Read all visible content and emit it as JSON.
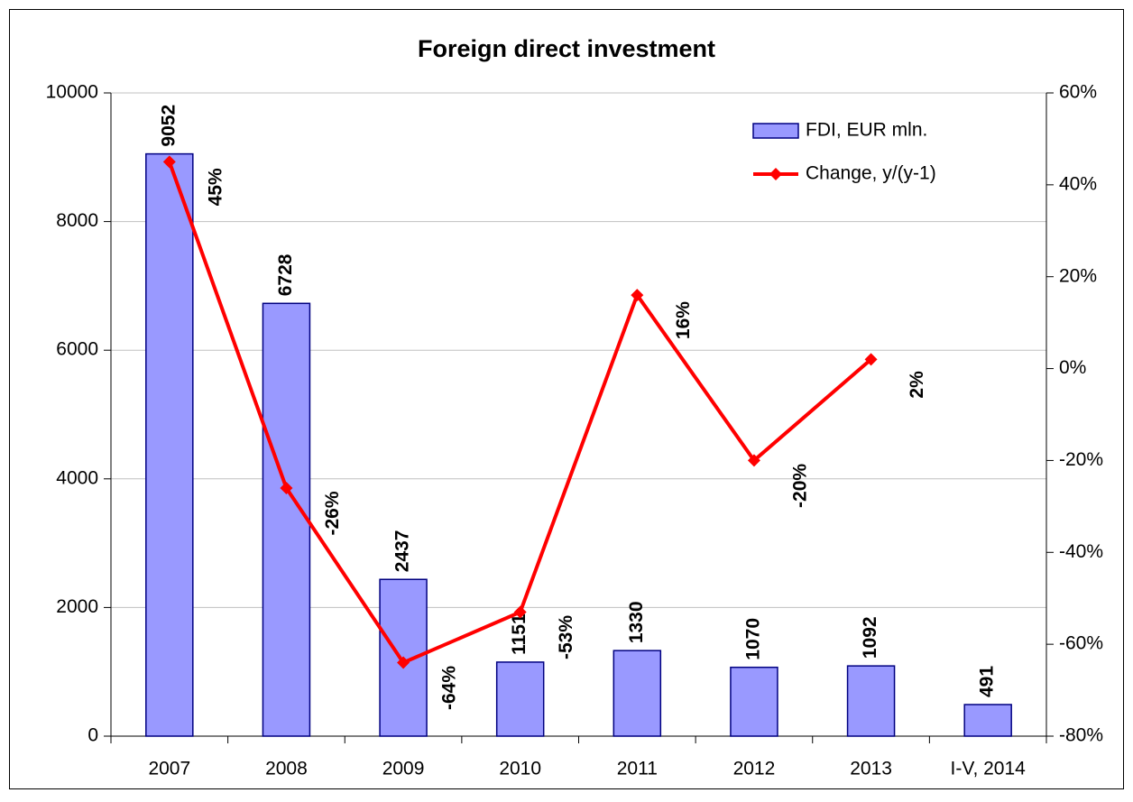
{
  "chart_data": {
    "type": "bar_line",
    "title": "Foreign direct investment",
    "categories": [
      "2007",
      "2008",
      "2009",
      "2010",
      "2011",
      "2012",
      "2013",
      "I-V, 2014"
    ],
    "series": [
      {
        "name": "FDI, EUR mln.",
        "type": "bar",
        "color": "#9999ff",
        "edge_color": "#000080",
        "values": [
          9052,
          6728,
          2437,
          1151,
          1330,
          1070,
          1092,
          491
        ]
      },
      {
        "name": "Change, y/(y-1)",
        "type": "line",
        "axis": "y2",
        "color": "#ff0000",
        "values": [
          45,
          -26,
          -64,
          -53,
          16,
          -20,
          2,
          null
        ],
        "value_labels": [
          "45%",
          "-26%",
          "-64%",
          "-53%",
          "16%",
          "-20%",
          "2%",
          null
        ]
      }
    ],
    "ylim": [
      0,
      10000
    ],
    "yticks": [
      0,
      2000,
      4000,
      6000,
      8000,
      10000
    ],
    "y2lim": [
      -80,
      60
    ],
    "y2ticks": [
      {
        "value": -80,
        "label": "-80%"
      },
      {
        "value": -60,
        "label": "-60%"
      },
      {
        "value": -40,
        "label": "-40%"
      },
      {
        "value": -20,
        "label": "-20%"
      },
      {
        "value": 0,
        "label": "0%"
      },
      {
        "value": 20,
        "label": "20%"
      },
      {
        "value": 40,
        "label": "40%"
      },
      {
        "value": 60,
        "label": "60%"
      }
    ],
    "grid": true,
    "legend": "upper right"
  }
}
